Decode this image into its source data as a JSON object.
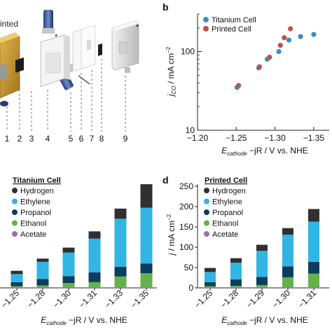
{
  "panel_a": {
    "label_printed": "rinted",
    "part_numbers": [
      "1",
      "2",
      "3",
      "4",
      "5",
      "6",
      "7",
      "8",
      "9"
    ],
    "star": "*"
  },
  "chart_data": [
    {
      "panel": "b",
      "type": "scatter",
      "xlabel_main": "E",
      "xlabel_sub": "cathode",
      "xlabel_rest": " - jR / V vs. NHE",
      "ylabel_main": "j",
      "ylabel_sub": "CO",
      "ylabel_rest": " / mA cm",
      "ylabel_sup": "-2",
      "yscale": "log",
      "xlim": [
        -1.2,
        -1.37
      ],
      "ylim": [
        10,
        300
      ],
      "xticks": [
        -1.2,
        -1.25,
        -1.3,
        -1.35
      ],
      "xtick_labels": [
        "-1.20",
        "-1.25",
        "-1.30",
        "-1.35"
      ],
      "yticks": [
        10,
        100
      ],
      "ytick_labels": [
        "10",
        "100"
      ],
      "legend_position": "top-left",
      "series": [
        {
          "name": "Titanium Cell",
          "color": "#3b8fc4",
          "points": [
            [
              -1.251,
              35
            ],
            [
              -1.279,
              62
            ],
            [
              -1.29,
              80
            ],
            [
              -1.305,
              100
            ],
            [
              -1.318,
              140
            ],
            [
              -1.333,
              155
            ],
            [
              -1.35,
              165
            ]
          ]
        },
        {
          "name": "Printed Cell",
          "color": "#c0504d",
          "points": [
            [
              -1.253,
              37
            ],
            [
              -1.28,
              64
            ],
            [
              -1.293,
              85
            ],
            [
              -1.307,
              120
            ],
            [
              -1.312,
              150
            ],
            [
              -1.32,
              195
            ]
          ]
        }
      ]
    },
    {
      "panel": "c",
      "type": "bar",
      "stacked": true,
      "legend_title": "Titanium Cell",
      "categories": [
        "-1.25",
        "-1.28",
        "-1.30",
        "-1.31",
        "-1.33",
        "-1.35"
      ],
      "xlabel_main": "E",
      "xlabel_sub": "cathode",
      "xlabel_rest": " - jR / V vs. NHE",
      "ylim": [
        0,
        255
      ],
      "legend_position": "top-left",
      "series": [
        {
          "name": "Acetate",
          "color": "#9b6fb6",
          "values": [
            0,
            0,
            0,
            0,
            0,
            1
          ]
        },
        {
          "name": "Ethanol",
          "color": "#63b34a",
          "values": [
            4,
            6,
            12,
            14,
            28,
            35
          ]
        },
        {
          "name": "Propanol",
          "color": "#0e3c5e",
          "values": [
            10,
            16,
            17,
            24,
            24,
            24
          ]
        },
        {
          "name": "Ethylene",
          "color": "#30b5e5",
          "values": [
            20,
            42,
            58,
            83,
            118,
            137
          ]
        },
        {
          "name": "Hydrogen",
          "color": "#303030",
          "values": [
            8,
            8,
            12,
            18,
            25,
            58
          ]
        }
      ]
    },
    {
      "panel": "d",
      "type": "bar",
      "stacked": true,
      "legend_title": "Printed Cell",
      "categories": [
        "-1.25",
        "-1.28",
        "-1.29",
        "-1.30",
        "-1.31"
      ],
      "xlabel_main": "E",
      "xlabel_sub": "cathode",
      "xlabel_rest": " - jR / V vs. NHE",
      "ylabel_main": "j",
      "ylabel_rest": " / mA cm",
      "ylabel_sup": "-2",
      "ylim": [
        0,
        255
      ],
      "yticks": [
        0,
        50,
        100,
        150,
        200,
        250
      ],
      "ytick_labels": [
        "0",
        "50",
        "100",
        "150",
        "200",
        "250"
      ],
      "legend_position": "top-left",
      "series": [
        {
          "name": "Acetate",
          "color": "#9b6fb6",
          "values": [
            0,
            0,
            0,
            0,
            0
          ]
        },
        {
          "name": "Ethanol",
          "color": "#63b34a",
          "values": [
            4,
            5,
            7,
            26,
            35
          ]
        },
        {
          "name": "Propanol",
          "color": "#0e3c5e",
          "values": [
            10,
            16,
            20,
            27,
            29
          ]
        },
        {
          "name": "Ethylene",
          "color": "#30b5e5",
          "values": [
            25,
            41,
            64,
            78,
            99
          ]
        },
        {
          "name": "Hydrogen",
          "color": "#303030",
          "values": [
            10,
            11,
            15,
            16,
            31
          ]
        }
      ]
    }
  ],
  "panel_labels": {
    "b": "b",
    "d": "d"
  }
}
